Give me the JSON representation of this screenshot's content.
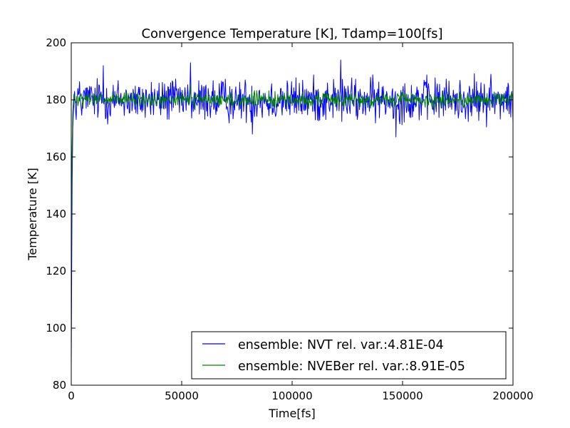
{
  "chart_data": {
    "type": "line",
    "title": "Convergence Temperature [K], Tdamp=100[fs]",
    "xlabel": "Time[fs]",
    "ylabel": "Temperature [K]",
    "xlim": [
      0,
      200000
    ],
    "ylim": [
      80,
      200
    ],
    "xticks": [
      0,
      50000,
      100000,
      150000,
      200000
    ],
    "yticks": [
      80,
      100,
      120,
      140,
      160,
      180,
      200
    ],
    "grid": false,
    "legend_position": "lower-right",
    "series": [
      {
        "name": "ensemble: NVT rel. var.:4.81E-04",
        "color": "#0000ff",
        "mean": 180,
        "x": [
          0,
          200,
          400,
          700,
          1000,
          1500,
          2000,
          3000,
          5000,
          8000,
          10000,
          14500,
          20000,
          25000,
          30000,
          35000,
          40000,
          45000,
          50000,
          54000,
          58000,
          62000,
          66000,
          70000,
          75000,
          80000,
          82000,
          85000,
          90000,
          95000,
          100000,
          105000,
          110000,
          115000,
          118000,
          122000,
          126000,
          130000,
          135000,
          140000,
          144000,
          147000,
          150000,
          155000,
          160000,
          165000,
          170000,
          175000,
          180000,
          185000,
          190000,
          195000,
          198000,
          200000
        ],
        "values": [
          86,
          120,
          150,
          170,
          176,
          183,
          176,
          184,
          179,
          181,
          178,
          192,
          178,
          183,
          175,
          181,
          177,
          186,
          178,
          193,
          175,
          184,
          176,
          182,
          178,
          181,
          168,
          183,
          177,
          184,
          178,
          182,
          176,
          183,
          179,
          194,
          177,
          183,
          176,
          181,
          179,
          167,
          182,
          176,
          185,
          178,
          183,
          177,
          182,
          176,
          189,
          178,
          185,
          172
        ]
      },
      {
        "name": "ensemble: NVEBer rel. var.:8.91E-05",
        "color": "#008000",
        "mean": 180,
        "x": [
          0,
          300,
          700,
          1200,
          2000,
          5000,
          10000,
          20000,
          30000,
          40000,
          50000,
          54000,
          60000,
          70000,
          80000,
          90000,
          100000,
          110000,
          120000,
          130000,
          140000,
          150000,
          160000,
          170000,
          180000,
          190000,
          200000
        ],
        "values": [
          120,
          160,
          176,
          182,
          179,
          181,
          180,
          179,
          181,
          180,
          179,
          185,
          181,
          179,
          180,
          181,
          179,
          180,
          181,
          179,
          180,
          181,
          179,
          180,
          181,
          180,
          179
        ]
      }
    ]
  }
}
